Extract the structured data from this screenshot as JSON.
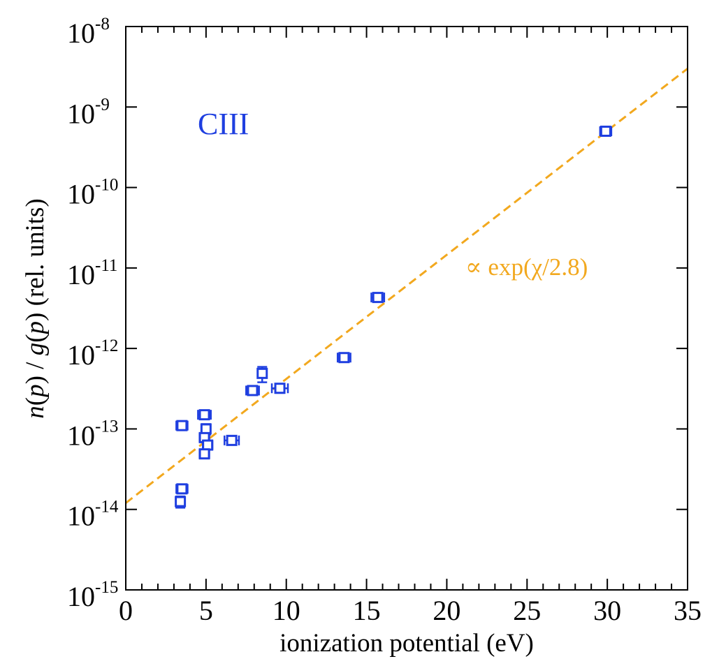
{
  "chart_data": {
    "type": "scatter",
    "title": "",
    "panel_label": "CIII",
    "xlabel": "ionization potential (eV)",
    "ylabel_parts": [
      "n",
      "(",
      "p",
      ") / ",
      "g",
      "(",
      "p",
      ") (rel. units)"
    ],
    "x_scale": "linear",
    "y_scale": "log",
    "xlim": [
      0,
      35
    ],
    "ylim_exponents": [
      -15,
      -8
    ],
    "x_major_ticks": [
      0,
      5,
      10,
      15,
      20,
      25,
      30,
      35
    ],
    "x_tick_labels": [
      "0",
      "5",
      "10",
      "15",
      "20",
      "25",
      "30",
      "35"
    ],
    "x_minor_step": 1,
    "y_tick_base": "10",
    "y_tick_exponents": [
      "-15",
      "-14",
      "-13",
      "-12",
      "-11",
      "-10",
      "-9",
      "-8"
    ],
    "grid": false,
    "marker": "open-square",
    "colors": {
      "data": "#1f3fe0",
      "fit": "#f2a81e",
      "panel_label": "#1f3fe0",
      "axes": "#000000"
    },
    "points": [
      {
        "x": 29.9,
        "y": 5e-10,
        "xerr": 0.35,
        "yerr_low": 1e-11,
        "yerr_high": 1e-11
      },
      {
        "x": 15.7,
        "y": 4.3e-12,
        "xerr": 0.4,
        "yerr_low": 4e-13,
        "yerr_high": 4e-13
      },
      {
        "x": 13.6,
        "y": 7.7e-13,
        "xerr": 0.4,
        "yerr_low": 5e-14,
        "yerr_high": 5e-14
      },
      {
        "x": 8.5,
        "y": 4.9e-13,
        "xerr": 0.0,
        "yerr_low": 1.1e-13,
        "yerr_high": 1e-13
      },
      {
        "x": 9.6,
        "y": 3.2e-13,
        "xerr": 0.5,
        "yerr_low": 4e-14,
        "yerr_high": 4e-14
      },
      {
        "x": 7.9,
        "y": 3e-13,
        "xerr": 0.4,
        "yerr_low": 3e-14,
        "yerr_high": 3e-14
      },
      {
        "x": 3.5,
        "y": 1.1e-13,
        "xerr": 0.35,
        "yerr_low": 8e-15,
        "yerr_high": 8e-15
      },
      {
        "x": 4.9,
        "y": 1.5e-13,
        "xerr": 0.4,
        "yerr_low": 1.5e-14,
        "yerr_high": 1.5e-14
      },
      {
        "x": 5.0,
        "y": 1e-13,
        "xerr": 0.0,
        "yerr_low": 1.5e-14,
        "yerr_high": 1.5e-14
      },
      {
        "x": 4.9,
        "y": 7.8e-14,
        "xerr": 0.3,
        "yerr_low": 5e-15,
        "yerr_high": 5e-15
      },
      {
        "x": 5.1,
        "y": 6.3e-14,
        "xerr": 0.3,
        "yerr_low": 5e-15,
        "yerr_high": 5e-15
      },
      {
        "x": 4.9,
        "y": 4.9e-14,
        "xerr": 0.3,
        "yerr_low": 5e-15,
        "yerr_high": 5e-15
      },
      {
        "x": 6.6,
        "y": 7.2e-14,
        "xerr": 0.45,
        "yerr_low": 5e-15,
        "yerr_high": 5e-15
      },
      {
        "x": 3.5,
        "y": 1.8e-14,
        "xerr": 0.35,
        "yerr_low": 1.5e-15,
        "yerr_high": 1.5e-15
      },
      {
        "x": 3.4,
        "y": 1.25e-14,
        "xerr": 0.0,
        "yerr_low": 2e-15,
        "yerr_high": 2e-15
      }
    ],
    "fit": {
      "label": "∝ exp(χ/2.8)",
      "style": "dashed",
      "x": [
        0,
        35
      ],
      "y": [
        1.2e-14,
        3e-09
      ]
    }
  }
}
